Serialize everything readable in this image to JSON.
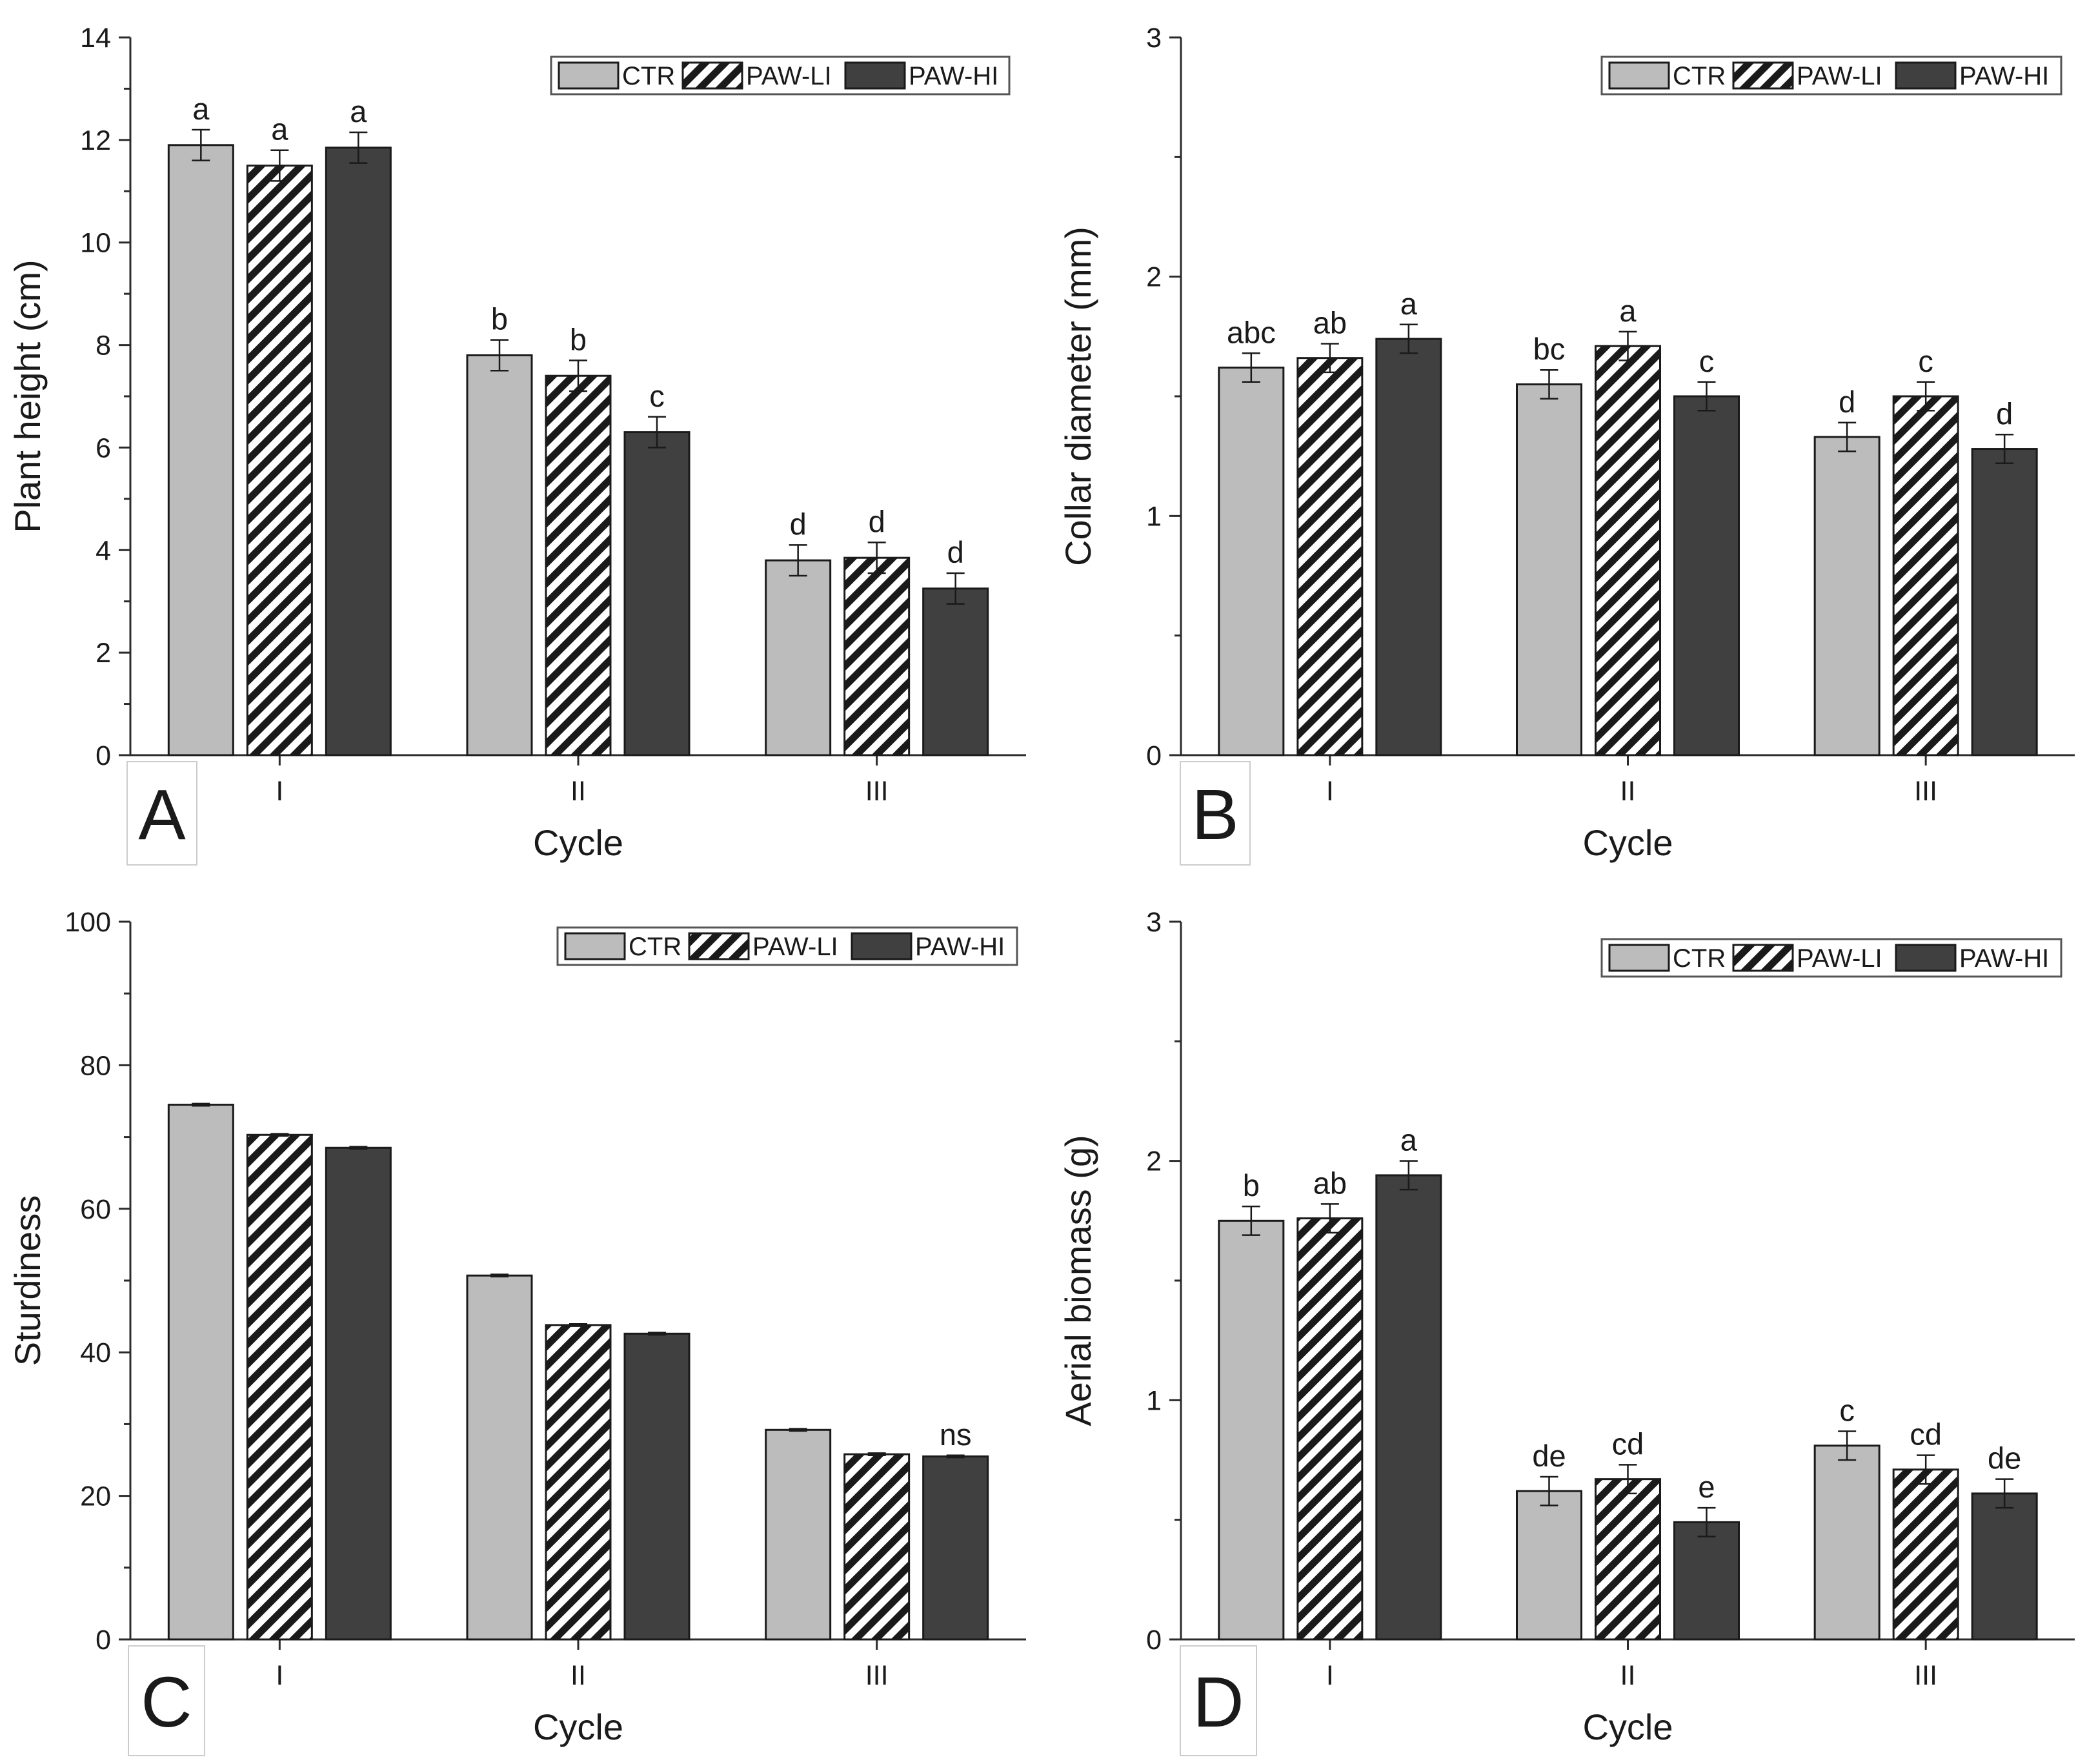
{
  "colors": {
    "CTR": "#bcbcbc",
    "PAW-HI": "#404040",
    "hatch_fg": "#1a1a1a",
    "hatch_bg": "#ffffff"
  },
  "chart_data": [
    {
      "panel": "A",
      "type": "bar",
      "xlabel": "Cycle",
      "ylabel": "Plant height (cm)",
      "ylim": [
        0,
        14
      ],
      "yticks": [
        0,
        2,
        4,
        6,
        8,
        10,
        12,
        14
      ],
      "categories": [
        "I",
        "II",
        "III"
      ],
      "legend": [
        "CTR",
        "PAW-LI",
        "PAW-HI"
      ],
      "series": [
        {
          "name": "CTR",
          "values": [
            11.9,
            7.8,
            3.8
          ],
          "errors": [
            0.3,
            0.3,
            0.3
          ],
          "labels": [
            "a",
            "b",
            "d"
          ]
        },
        {
          "name": "PAW-LI",
          "values": [
            11.5,
            7.4,
            3.85
          ],
          "errors": [
            0.3,
            0.3,
            0.3
          ],
          "labels": [
            "a",
            "b",
            "d"
          ]
        },
        {
          "name": "PAW-HI",
          "values": [
            11.85,
            6.3,
            3.25
          ],
          "errors": [
            0.3,
            0.3,
            0.3
          ],
          "labels": [
            "a",
            "c",
            "d"
          ]
        }
      ]
    },
    {
      "panel": "B",
      "type": "bar",
      "xlabel": "Cycle",
      "ylabel": "Collar diameter (mm)",
      "ylim": [
        0,
        3
      ],
      "yticks": [
        0,
        1,
        2,
        3
      ],
      "categories": [
        "I",
        "II",
        "III"
      ],
      "legend": [
        "CTR",
        "PAW-LI",
        "PAW-HI"
      ],
      "series": [
        {
          "name": "CTR",
          "values": [
            1.62,
            1.55,
            1.33
          ],
          "errors": [
            0.06,
            0.06,
            0.06
          ],
          "labels": [
            "abc",
            "bc",
            "d"
          ]
        },
        {
          "name": "PAW-LI",
          "values": [
            1.66,
            1.71,
            1.5
          ],
          "errors": [
            0.06,
            0.06,
            0.06
          ],
          "labels": [
            "ab",
            "a",
            "c"
          ]
        },
        {
          "name": "PAW-HI",
          "values": [
            1.74,
            1.5,
            1.28
          ],
          "errors": [
            0.06,
            0.06,
            0.06
          ],
          "labels": [
            "a",
            "c",
            "d"
          ]
        }
      ]
    },
    {
      "panel": "C",
      "type": "bar",
      "xlabel": "Cycle",
      "ylabel": "Sturdiness",
      "ylim": [
        0,
        100
      ],
      "yticks": [
        0,
        20,
        40,
        60,
        80,
        100
      ],
      "categories": [
        "I",
        "II",
        "III"
      ],
      "legend": [
        "CTR",
        "PAW-LI",
        "PAW-HI"
      ],
      "series": [
        {
          "name": "CTR",
          "values": [
            74.5,
            50.7,
            29.2
          ],
          "errors": [
            0.15,
            0.15,
            0.15
          ],
          "labels": [
            "",
            "",
            ""
          ]
        },
        {
          "name": "PAW-LI",
          "values": [
            70.3,
            43.8,
            25.8
          ],
          "errors": [
            0.15,
            0.15,
            0.15
          ],
          "labels": [
            "",
            "",
            ""
          ]
        },
        {
          "name": "PAW-HI",
          "values": [
            68.5,
            42.6,
            25.5
          ],
          "errors": [
            0.15,
            0.15,
            0.15
          ],
          "labels": [
            "",
            "",
            "ns"
          ]
        }
      ]
    },
    {
      "panel": "D",
      "type": "bar",
      "xlabel": "Cycle",
      "ylabel": "Aerial biomass (g)",
      "ylim": [
        0,
        3
      ],
      "yticks": [
        0,
        1,
        2,
        3
      ],
      "categories": [
        "I",
        "II",
        "III"
      ],
      "legend": [
        "CTR",
        "PAW-LI",
        "PAW-HI"
      ],
      "series": [
        {
          "name": "CTR",
          "values": [
            1.75,
            0.62,
            0.81
          ],
          "errors": [
            0.06,
            0.06,
            0.06
          ],
          "labels": [
            "b",
            "de",
            "c"
          ]
        },
        {
          "name": "PAW-LI",
          "values": [
            1.76,
            0.67,
            0.71
          ],
          "errors": [
            0.06,
            0.06,
            0.06
          ],
          "labels": [
            "ab",
            "cd",
            "cd"
          ]
        },
        {
          "name": "PAW-HI",
          "values": [
            1.94,
            0.49,
            0.61
          ],
          "errors": [
            0.06,
            0.06,
            0.06
          ],
          "labels": [
            "a",
            "e",
            "de"
          ]
        }
      ]
    }
  ]
}
